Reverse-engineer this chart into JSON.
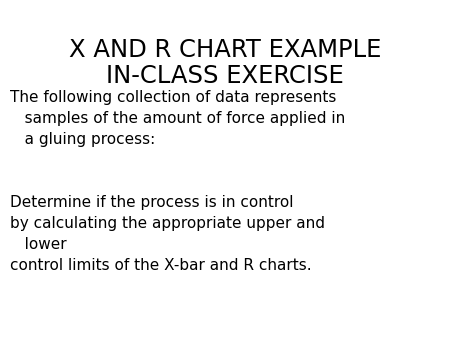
{
  "title_line1": "X AND R CHART EXAMPLE",
  "title_line2": "IN-CLASS EXERCISE",
  "body_text": "The following collection of data represents\n   samples of the amount of force applied in\n   a gluing process:\n\n\nDetermine if the process is in control\nby calculating the appropriate upper and\n   lower\ncontrol limits of the X-bar and R charts.",
  "title_fontsize": 17.5,
  "body_fontsize": 11.0,
  "background_color": "#ffffff",
  "text_color": "#000000"
}
